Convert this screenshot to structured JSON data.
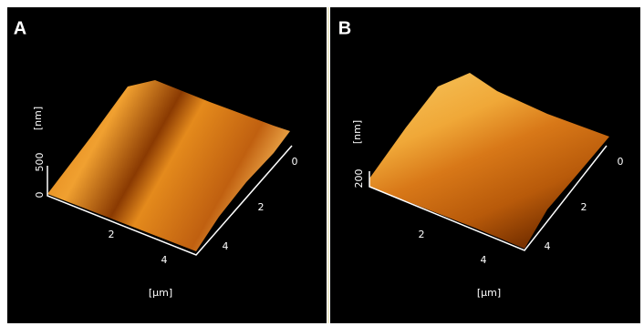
{
  "panels": [
    {
      "label": "A",
      "z_axis_label": "[nm]",
      "z_ticks": [
        "0",
        "500"
      ],
      "x_ticks": [
        "2",
        "4"
      ],
      "y_ticks": [
        "0",
        "2",
        "4"
      ],
      "xy_unit": "[µm]"
    },
    {
      "label": "B",
      "z_axis_label": "[nm]",
      "z_ticks": [
        "200"
      ],
      "x_ticks": [
        "2",
        "4"
      ],
      "y_ticks": [
        "0",
        "2",
        "4"
      ],
      "xy_unit": "[µm]"
    }
  ]
}
